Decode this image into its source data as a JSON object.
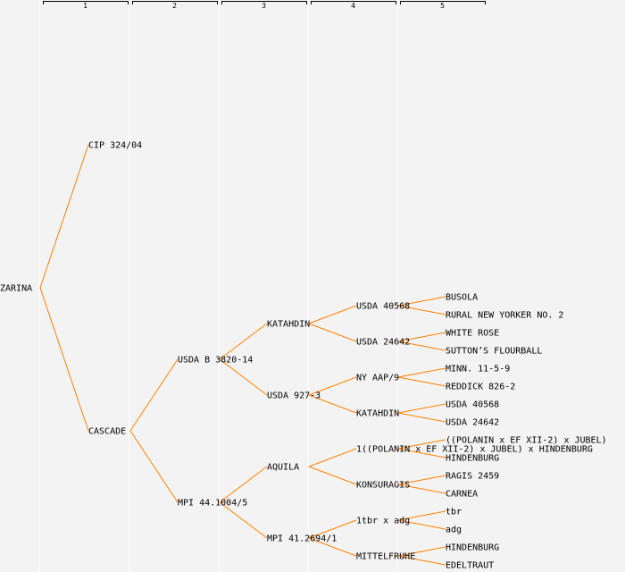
{
  "header": {
    "columns": [
      "1",
      "2",
      "3",
      "4",
      "5"
    ]
  },
  "colors": {
    "edge": "#ff8000",
    "background": "#f3f3f3",
    "separator": "#ffffff",
    "bracket": "#000000"
  },
  "tree": {
    "name": "ZARINA",
    "children": [
      {
        "name": "CIP 324/04"
      },
      {
        "name": "CASCADE",
        "children": [
          {
            "name": "USDA B 3820-14",
            "children": [
              {
                "name": "KATAHDIN",
                "children": [
                  {
                    "name": "USDA 40568",
                    "children": [
                      {
                        "name": "BUSOLA"
                      },
                      {
                        "name": "RURAL NEW YORKER NO. 2"
                      }
                    ]
                  },
                  {
                    "name": "USDA 24642",
                    "children": [
                      {
                        "name": "WHITE ROSE"
                      },
                      {
                        "name": "SUTTON’S FLOURBALL"
                      }
                    ]
                  }
                ]
              },
              {
                "name": "USDA 927-3",
                "children": [
                  {
                    "name": "NY AAP/9",
                    "children": [
                      {
                        "name": "MINN. 11-5-9"
                      },
                      {
                        "name": "REDDICK 826-2"
                      }
                    ]
                  },
                  {
                    "name": "KATAHDIN",
                    "children": [
                      {
                        "name": "USDA 40568"
                      },
                      {
                        "name": "USDA 24642"
                      }
                    ]
                  }
                ]
              }
            ]
          },
          {
            "name": "MPI 44.1004/5",
            "children": [
              {
                "name": "AQUILA",
                "children": [
                  {
                    "name": "1((POLANIN x EF XII-2) x JUBEL) x HINDENBURG",
                    "children": [
                      {
                        "name": "((POLANIN x EF XII-2) x JUBEL)"
                      },
                      {
                        "name": "HINDENBURG"
                      }
                    ]
                  },
                  {
                    "name": "KONSURAGIS",
                    "children": [
                      {
                        "name": "RAGIS 2459"
                      },
                      {
                        "name": "CARNEA"
                      }
                    ]
                  }
                ]
              },
              {
                "name": "MPI 41.2694/1",
                "children": [
                  {
                    "name": "1tbr x adg",
                    "children": [
                      {
                        "name": "tbr"
                      },
                      {
                        "name": "adg"
                      }
                    ]
                  },
                  {
                    "name": "MITTELFRUHE",
                    "children": [
                      {
                        "name": "HINDENBURG"
                      },
                      {
                        "name": "EDELTRAUT"
                      }
                    ]
                  }
                ]
              }
            ]
          }
        ]
      }
    ]
  }
}
